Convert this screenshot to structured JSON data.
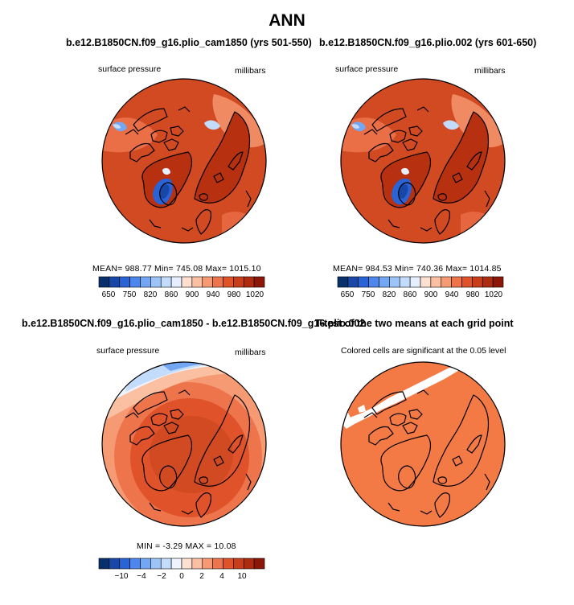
{
  "main_title": "ANN",
  "colors": {
    "seq_scale": [
      "#08306b",
      "#1847a8",
      "#2a63d6",
      "#4d86ec",
      "#73a7f4",
      "#9cc4f8",
      "#c3dcfb",
      "#e5efff",
      "#fde0cf",
      "#fbc0a2",
      "#f69a74",
      "#ee744c",
      "#df522a",
      "#c93e1a",
      "#ad2c10",
      "#8c1707"
    ],
    "diff_scale": [
      "#08306b",
      "#1847a8",
      "#2a63d6",
      "#4d86ec",
      "#73a7f4",
      "#9cc4f8",
      "#c3dcfb",
      "#eef4ff",
      "#fde0cf",
      "#fbc0a2",
      "#f69a74",
      "#ee744c",
      "#df522a",
      "#c93e1a",
      "#ad2c10",
      "#8c1707"
    ],
    "ttest_fill": "#f37a45",
    "land_base": "#d24a22",
    "land_dark": "#b7300f"
  },
  "panels": {
    "p1": {
      "title": "b.e12.B1850CN.f09_g16.plio_cam1850 (yrs 501-550)",
      "left_label": "surface pressure",
      "right_label": "millibars",
      "stats": "MEAN= 988.77   Min= 745.08   Max= 1015.10"
    },
    "p2": {
      "title": "b.e12.B1850CN.f09_g16.plio.002 (yrs 601-650)",
      "left_label": "surface pressure",
      "right_label": "millibars",
      "stats": "MEAN= 984.53   Min= 740.36   Max= 1014.85"
    },
    "p3": {
      "title": "b.e12.B1850CN.f09_g16.plio_cam1850 - b.e12.B1850CN.f09_g16.plio.002",
      "left_label": "surface pressure",
      "right_label": "millibars",
      "stats": "MIN =   -3.29  MAX =   10.08"
    },
    "p4": {
      "title": "T-test of the two means at each grid point",
      "subtitle": "Colored cells are significant at the 0.05 level"
    }
  },
  "chart_data": [
    {
      "type": "heatmap",
      "title": "b.e12.B1850CN.f09_g16.plio_cam1850 (yrs 501-550)",
      "field": "surface pressure",
      "units": "millibars",
      "projection": "north polar stereographic",
      "stats": {
        "mean": 988.77,
        "min": 745.08,
        "max": 1015.1
      },
      "colorbar_ticks": [
        "650",
        "750",
        "820",
        "860",
        "900",
        "940",
        "980",
        "1020"
      ]
    },
    {
      "type": "heatmap",
      "title": "b.e12.B1850CN.f09_g16.plio.002 (yrs 601-650)",
      "field": "surface pressure",
      "units": "millibars",
      "projection": "north polar stereographic",
      "stats": {
        "mean": 984.53,
        "min": 740.36,
        "max": 1014.85
      },
      "colorbar_ticks": [
        "650",
        "750",
        "820",
        "860",
        "900",
        "940",
        "980",
        "1020"
      ]
    },
    {
      "type": "heatmap",
      "title": "b.e12.B1850CN.f09_g16.plio_cam1850 - b.e12.B1850CN.f09_g16.plio.002",
      "field": "surface pressure",
      "units": "millibars",
      "projection": "north polar stereographic",
      "stats": {
        "min": -3.29,
        "max": 10.08
      },
      "colorbar_ticks": [
        "−10",
        "−4",
        "−2",
        "0",
        "2",
        "4",
        "10"
      ]
    },
    {
      "type": "heatmap",
      "title": "T-test of the two means at each grid point",
      "subtitle": "Colored cells are significant at the 0.05 level",
      "significance_level": 0.05
    }
  ]
}
